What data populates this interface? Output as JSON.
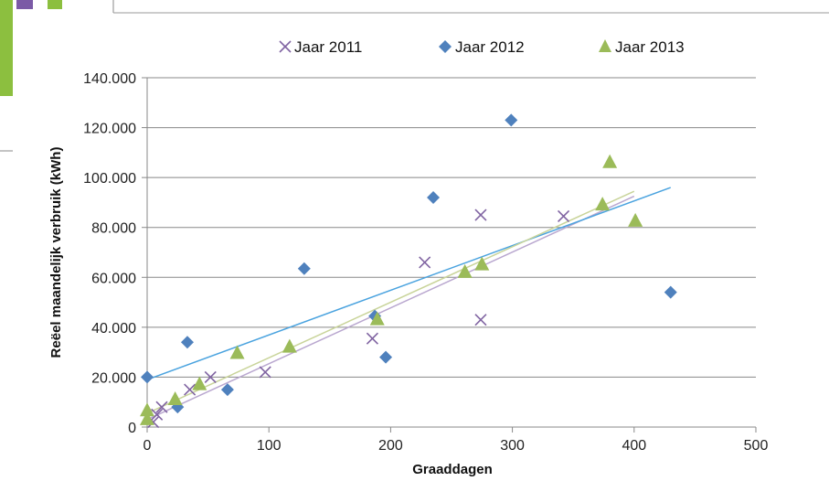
{
  "chart_data": {
    "type": "scatter",
    "xlabel": "Graaddagen",
    "ylabel": "Reëel maandelijk verbruik (kWh)",
    "xlim": [
      0,
      500
    ],
    "ylim": [
      0,
      140000
    ],
    "x_ticks": [
      "0",
      "100",
      "200",
      "300",
      "400",
      "500"
    ],
    "y_ticks": [
      "0",
      "20.000",
      "40.000",
      "60.000",
      "80.000",
      "100.000",
      "120.000",
      "140.000"
    ],
    "grid": "horizontal",
    "legend": "top",
    "series": [
      {
        "name": "Jaar 2011",
        "marker": "x",
        "color": "#8064a2",
        "points": [
          [
            5,
            2000
          ],
          [
            8,
            5000
          ],
          [
            12,
            8000
          ],
          [
            35,
            15000
          ],
          [
            52,
            20000
          ],
          [
            97,
            22000
          ],
          [
            185,
            35500
          ],
          [
            228,
            66000
          ],
          [
            274,
            43000
          ],
          [
            274,
            85000
          ],
          [
            342,
            84500
          ]
        ],
        "trendline": [
          [
            0,
            3000
          ],
          [
            400,
            92500
          ]
        ],
        "trend_color": "#b9a7cf"
      },
      {
        "name": "Jaar 2012",
        "marker": "diamond",
        "color": "#4f81bd",
        "points": [
          [
            0,
            20000
          ],
          [
            25,
            8000
          ],
          [
            33,
            34000
          ],
          [
            66,
            15000
          ],
          [
            129,
            63500
          ],
          [
            187,
            44500
          ],
          [
            196,
            28000
          ],
          [
            235,
            92000
          ],
          [
            299,
            123000
          ],
          [
            430,
            54000
          ]
        ],
        "trendline": [
          [
            0,
            19000
          ],
          [
            430,
            96000
          ]
        ],
        "trend_color": "#4aa3df"
      },
      {
        "name": "Jaar 2013",
        "marker": "triangle",
        "color": "#9bbb59",
        "points": [
          [
            0,
            3000
          ],
          [
            0,
            6500
          ],
          [
            23,
            11000
          ],
          [
            43,
            17000
          ],
          [
            74,
            29500
          ],
          [
            117,
            32000
          ],
          [
            189,
            43000
          ],
          [
            261,
            62000
          ],
          [
            275,
            65000
          ],
          [
            374,
            89000
          ],
          [
            380,
            106000
          ],
          [
            401,
            82500
          ]
        ],
        "trendline": [
          [
            0,
            5500
          ],
          [
            400,
            94500
          ]
        ],
        "trend_color": "#c9d49a"
      }
    ]
  }
}
